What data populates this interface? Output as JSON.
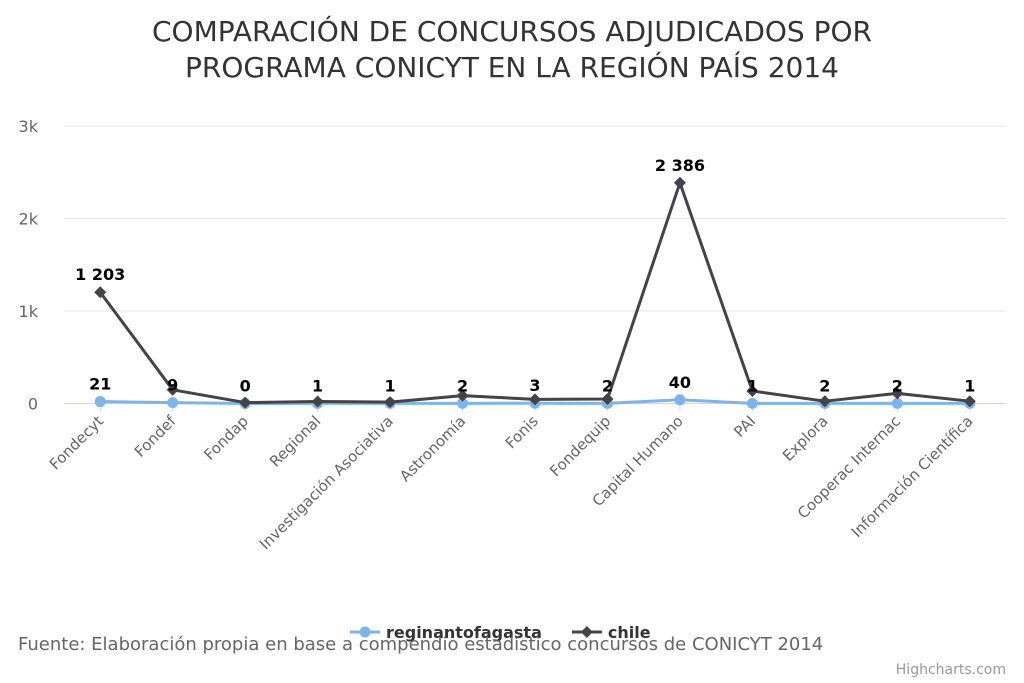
{
  "chart_data": {
    "type": "line",
    "title_lines": [
      "COMPARACIÓN DE CONCURSOS ADJUDICADOS POR",
      "PROGRAMA CONICYT EN LA REGIÓN PAÍS 2014"
    ],
    "categories": [
      "Fondecyt",
      "Fondef",
      "Fondap",
      "Regional",
      "Investigación Asociativa",
      "Astronomía",
      "Fonis",
      "Fondequip",
      "Capital Humano",
      "PAI",
      "Explora",
      "Cooperac Internac",
      "Información Científica"
    ],
    "ylim": [
      0,
      3000
    ],
    "yticks": [
      {
        "value": 0,
        "label": "0"
      },
      {
        "value": 1000,
        "label": "1k"
      },
      {
        "value": 2000,
        "label": "2k"
      },
      {
        "value": 3000,
        "label": "3k"
      }
    ],
    "grid": true,
    "series": [
      {
        "name": "reginantofagasta",
        "color": "#7cb5ec",
        "marker": "circle",
        "values": [
          21,
          9,
          0,
          1,
          1,
          2,
          3,
          2,
          40,
          1,
          2,
          2,
          1
        ],
        "labels": [
          "21",
          "9",
          "0",
          "1",
          "1",
          "2",
          "3",
          "2",
          "40",
          "1",
          "2",
          "2",
          "1"
        ]
      },
      {
        "name": "chile",
        "color": "#434348",
        "marker": "diamond",
        "values": [
          1203,
          148,
          10,
          22,
          15,
          85,
          45,
          48,
          2386,
          135,
          25,
          110,
          25
        ],
        "labels": [
          "1 203",
          "",
          "",
          "",
          "",
          "",
          "",
          "",
          "2 386",
          "",
          "",
          "",
          ""
        ]
      }
    ],
    "legend_position": "bottom-center",
    "source": "Fuente: Elaboración propia en base a compendio estadístico concursos de CONICYT 2014",
    "credits": "Highcharts.com"
  }
}
